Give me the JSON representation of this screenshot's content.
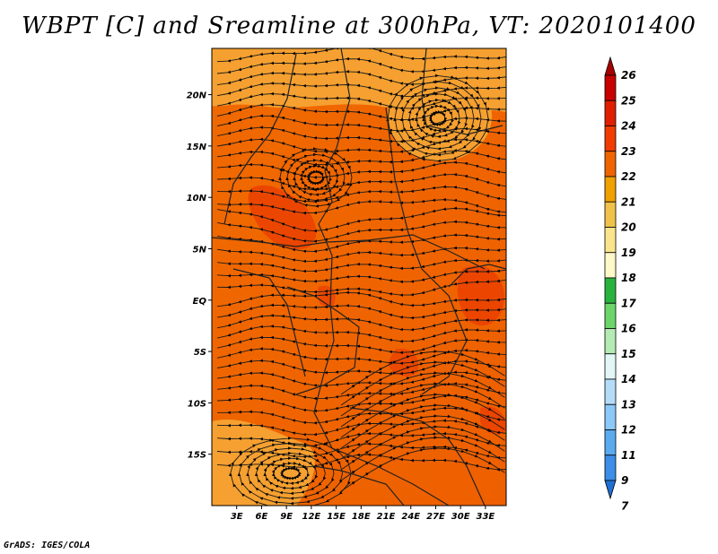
{
  "title": "WBPT [C] and Sreamline at 300hPa, VT: 2020101400",
  "credit": "GrADS: IGES/COLA",
  "chart_data": {
    "type": "heatmap",
    "title": "WBPT [C] and Sreamline at 300hPa, VT: 2020101400",
    "variable": "WBPT [C]",
    "level": "300hPa",
    "valid_time": "2020101400",
    "overlay": "streamlines",
    "xlim": [
      0,
      35.5
    ],
    "ylim": [
      -20,
      24.5
    ],
    "x_ticks": [
      {
        "value": 3,
        "label": "3E"
      },
      {
        "value": 6,
        "label": "6E"
      },
      {
        "value": 9,
        "label": "9E"
      },
      {
        "value": 12,
        "label": "12E"
      },
      {
        "value": 15,
        "label": "15E"
      },
      {
        "value": 18,
        "label": "18E"
      },
      {
        "value": 21,
        "label": "21E"
      },
      {
        "value": 24,
        "label": "24E"
      },
      {
        "value": 27,
        "label": "27E"
      },
      {
        "value": 30,
        "label": "30E"
      },
      {
        "value": 33,
        "label": "33E"
      }
    ],
    "y_ticks": [
      {
        "value": 20,
        "label": "20N"
      },
      {
        "value": 15,
        "label": "15N"
      },
      {
        "value": 10,
        "label": "10N"
      },
      {
        "value": 5,
        "label": "5N"
      },
      {
        "value": 0,
        "label": "EQ"
      },
      {
        "value": -5,
        "label": "5S"
      },
      {
        "value": -10,
        "label": "10S"
      },
      {
        "value": -15,
        "label": "15S"
      }
    ],
    "colorbar": {
      "labels": [
        "26",
        "25",
        "24",
        "23",
        "22",
        "21",
        "20",
        "19",
        "18",
        "17",
        "16",
        "15",
        "14",
        "13",
        "12",
        "11",
        "9",
        "7"
      ],
      "colors": [
        "#a50000",
        "#c80000",
        "#e01e00",
        "#f03c00",
        "#f06400",
        "#f0a000",
        "#f0c24a",
        "#fbe58c",
        "#fff8c8",
        "#2ab23e",
        "#6bd46b",
        "#b4eab4",
        "#e2f6f6",
        "#b4dcf8",
        "#8cc8f8",
        "#5aaaf0",
        "#3c8ee6",
        "#1f6ed4"
      ]
    },
    "regions": [
      {
        "name": "background",
        "wbpt": 22
      },
      {
        "name": "north-band",
        "wbpt": 21,
        "lon": [
          0,
          35.5
        ],
        "lat": [
          19,
          24.5
        ]
      },
      {
        "name": "northeast-cyclone",
        "wbpt": 21,
        "lon": [
          24,
          33
        ],
        "lat": [
          16,
          24
        ]
      },
      {
        "name": "southwest-cyclone",
        "wbpt": 21,
        "lon": [
          0,
          16
        ],
        "lat": [
          -20,
          -12
        ]
      },
      {
        "name": "west-africa-warm",
        "wbpt": 23,
        "lon": [
          5,
          14
        ],
        "lat": [
          4,
          10
        ]
      },
      {
        "name": "east-africa-warm",
        "wbpt": 23,
        "lon": [
          29,
          34
        ],
        "lat": [
          -3,
          3
        ]
      },
      {
        "name": "southeast-warm",
        "wbpt": 23,
        "lon": [
          30,
          35
        ],
        "lat": [
          -12,
          -8
        ]
      }
    ]
  }
}
